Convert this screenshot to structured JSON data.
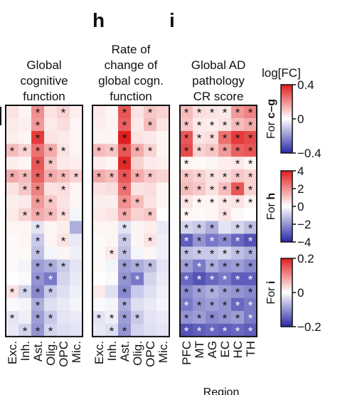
{
  "panel_labels": [
    "h",
    "i"
  ],
  "legend": {
    "title": "log[FC]",
    "bars": [
      {
        "label": "For c–g",
        "ticks": [
          "0.4",
          "0",
          "−0.4"
        ],
        "range": [
          -0.4,
          0.4
        ]
      },
      {
        "label": "For h",
        "ticks": [
          "4",
          "2",
          "0",
          "−2",
          "−4"
        ],
        "range": [
          -4,
          4
        ]
      },
      {
        "label": "For i",
        "ticks": [
          "0.2",
          "0",
          "−0.2"
        ],
        "range": [
          -0.2,
          0.2
        ]
      }
    ]
  },
  "chart_data": [
    {
      "type": "heatmap",
      "title": "Global cognitive function",
      "title_lines": [
        "Global",
        "cognitive",
        "function"
      ],
      "columns": [
        "Exc.",
        "Inh.",
        "Ast.",
        "Olig.",
        "OPC",
        "Mic."
      ],
      "rows": 18,
      "values": [
        [
          0.05,
          0.02,
          0.2,
          0.05,
          0.08,
          0.03
        ],
        [
          0.04,
          0.03,
          0.18,
          0.04,
          0.06,
          0.02
        ],
        [
          0.03,
          0.02,
          0.35,
          0.05,
          0.04,
          0.02
        ],
        [
          0.12,
          0.08,
          0.25,
          0.15,
          0.05,
          0.02
        ],
        [
          0.03,
          0.02,
          0.3,
          0.1,
          0.04,
          0.03
        ],
        [
          0.15,
          0.12,
          0.28,
          0.15,
          0.12,
          0.08
        ],
        [
          0.05,
          0.1,
          0.22,
          0.05,
          0.06,
          0.02
        ],
        [
          0.03,
          0.04,
          0.18,
          0.1,
          0.05,
          0.02
        ],
        [
          0.04,
          0.08,
          0.15,
          0.12,
          0.06,
          -0.02
        ],
        [
          0.02,
          0.02,
          -0.05,
          0.02,
          0.03,
          -0.15
        ],
        [
          0.01,
          0.02,
          -0.1,
          0.02,
          0.05,
          -0.04
        ],
        [
          0.01,
          0.01,
          -0.12,
          -0.02,
          0.02,
          -0.03
        ],
        [
          0.01,
          -0.02,
          -0.18,
          -0.15,
          -0.1,
          -0.05
        ],
        [
          0.0,
          -0.01,
          -0.2,
          -0.25,
          -0.08,
          -0.04
        ],
        [
          0.05,
          -0.08,
          -0.22,
          -0.1,
          -0.06,
          -0.03
        ],
        [
          -0.01,
          -0.02,
          -0.15,
          -0.06,
          -0.04,
          -0.02
        ],
        [
          -0.05,
          -0.03,
          -0.18,
          -0.1,
          -0.05,
          -0.04
        ],
        [
          -0.04,
          -0.08,
          -0.2,
          -0.08,
          -0.06,
          -0.05
        ]
      ],
      "stars": [
        [
          0,
          0,
          1,
          0,
          1,
          0
        ],
        [
          0,
          0,
          1,
          0,
          0,
          0
        ],
        [
          0,
          0,
          1,
          0,
          0,
          0
        ],
        [
          1,
          1,
          1,
          1,
          1,
          0
        ],
        [
          0,
          0,
          1,
          1,
          0,
          0
        ],
        [
          1,
          1,
          1,
          1,
          1,
          1
        ],
        [
          0,
          1,
          1,
          0,
          1,
          0
        ],
        [
          0,
          0,
          1,
          1,
          0,
          0
        ],
        [
          0,
          1,
          1,
          1,
          1,
          0
        ],
        [
          0,
          0,
          1,
          0,
          0,
          0
        ],
        [
          0,
          0,
          1,
          0,
          1,
          0
        ],
        [
          0,
          0,
          1,
          0,
          0,
          0
        ],
        [
          0,
          0,
          1,
          1,
          1,
          0
        ],
        [
          0,
          0,
          1,
          1,
          0,
          0
        ],
        [
          1,
          1,
          1,
          1,
          0,
          0
        ],
        [
          0,
          0,
          1,
          0,
          0,
          0
        ],
        [
          1,
          0,
          1,
          1,
          0,
          0
        ],
        [
          0,
          1,
          1,
          1,
          0,
          0
        ]
      ]
    },
    {
      "type": "heatmap",
      "title": "Rate of change of global cogn. function",
      "title_lines": [
        "Rate of",
        "change of",
        "global cogn.",
        "function"
      ],
      "columns": [
        "Exc.",
        "Inh.",
        "Ast.",
        "Olig.",
        "OPC",
        "Mic."
      ],
      "rows": 18,
      "values": [
        [
          0.04,
          0.02,
          0.3,
          0.05,
          0.1,
          0.08
        ],
        [
          0.03,
          0.02,
          0.28,
          0.04,
          0.12,
          0.05
        ],
        [
          0.02,
          0.02,
          0.4,
          0.05,
          0.04,
          0.02
        ],
        [
          0.12,
          0.1,
          0.3,
          0.15,
          0.08,
          0.02
        ],
        [
          0.03,
          0.02,
          0.38,
          0.08,
          0.04,
          0.03
        ],
        [
          0.15,
          0.12,
          0.3,
          0.15,
          0.1,
          0.08
        ],
        [
          0.05,
          0.06,
          0.25,
          0.05,
          0.06,
          0.02
        ],
        [
          0.03,
          0.03,
          0.2,
          0.12,
          0.05,
          0.02
        ],
        [
          0.04,
          0.05,
          0.15,
          0.08,
          0.1,
          0.0
        ],
        [
          0.02,
          0.02,
          -0.05,
          0.02,
          0.03,
          -0.04
        ],
        [
          0.01,
          0.02,
          -0.1,
          0.02,
          0.05,
          -0.03
        ],
        [
          0.01,
          0.04,
          -0.12,
          -0.02,
          0.02,
          -0.03
        ],
        [
          0.01,
          -0.02,
          -0.18,
          -0.15,
          -0.12,
          -0.05
        ],
        [
          0.0,
          -0.01,
          -0.2,
          -0.25,
          -0.08,
          -0.04
        ],
        [
          0.04,
          -0.06,
          -0.22,
          -0.1,
          -0.06,
          -0.03
        ],
        [
          -0.01,
          -0.02,
          -0.15,
          -0.06,
          -0.04,
          -0.02
        ],
        [
          -0.05,
          -0.03,
          -0.18,
          -0.1,
          -0.05,
          -0.04
        ],
        [
          -0.04,
          -0.06,
          -0.2,
          -0.08,
          -0.06,
          -0.05
        ]
      ],
      "stars": [
        [
          0,
          0,
          1,
          0,
          1,
          0
        ],
        [
          0,
          0,
          1,
          0,
          1,
          0
        ],
        [
          0,
          0,
          1,
          0,
          0,
          0
        ],
        [
          1,
          1,
          1,
          1,
          1,
          0
        ],
        [
          0,
          0,
          1,
          0,
          0,
          0
        ],
        [
          1,
          1,
          1,
          1,
          1,
          0
        ],
        [
          0,
          0,
          1,
          0,
          0,
          0
        ],
        [
          0,
          0,
          1,
          1,
          0,
          0
        ],
        [
          0,
          0,
          1,
          0,
          1,
          0
        ],
        [
          0,
          0,
          1,
          0,
          0,
          0
        ],
        [
          0,
          0,
          1,
          0,
          1,
          0
        ],
        [
          0,
          1,
          1,
          0,
          0,
          0
        ],
        [
          0,
          0,
          1,
          1,
          1,
          0
        ],
        [
          0,
          0,
          1,
          1,
          0,
          0
        ],
        [
          0,
          0,
          1,
          0,
          0,
          0
        ],
        [
          0,
          0,
          1,
          0,
          0,
          0
        ],
        [
          1,
          1,
          1,
          1,
          0,
          0
        ],
        [
          0,
          1,
          1,
          0,
          0,
          0
        ]
      ]
    },
    {
      "type": "heatmap",
      "title": "Global AD pathology CR score",
      "title_lines": [
        "Global AD",
        "pathology",
        "CR score"
      ],
      "columns": [
        "PFC",
        "MT",
        "AG",
        "EC",
        "HC",
        "TH"
      ],
      "xlabel": "Region",
      "rows": 18,
      "values": [
        [
          0.12,
          0.06,
          0.05,
          0.04,
          0.18,
          0.22
        ],
        [
          0.1,
          0.04,
          0.03,
          0.05,
          0.12,
          0.15
        ],
        [
          0.3,
          0.05,
          0.06,
          0.25,
          0.35,
          0.32
        ],
        [
          0.32,
          0.08,
          0.1,
          0.18,
          0.28,
          0.3
        ],
        [
          0.02,
          0.01,
          0.02,
          0.03,
          0.04,
          0.02
        ],
        [
          0.1,
          0.08,
          0.05,
          0.06,
          0.1,
          0.08
        ],
        [
          0.12,
          0.1,
          0.05,
          0.12,
          0.3,
          0.08
        ],
        [
          0.05,
          0.02,
          0.02,
          0.04,
          0.05,
          0.02
        ],
        [
          0.02,
          0.01,
          0.02,
          0.05,
          0.01,
          0.0
        ],
        [
          -0.08,
          -0.1,
          -0.15,
          -0.05,
          -0.08,
          -0.12
        ],
        [
          -0.3,
          -0.2,
          -0.25,
          -0.22,
          -0.28,
          -0.32
        ],
        [
          -0.12,
          -0.1,
          -0.1,
          -0.08,
          -0.12,
          -0.15
        ],
        [
          -0.18,
          -0.25,
          -0.15,
          -0.2,
          -0.18,
          -0.22
        ],
        [
          -0.28,
          -0.32,
          -0.28,
          -0.25,
          -0.3,
          -0.3
        ],
        [
          -0.22,
          -0.18,
          -0.15,
          -0.18,
          -0.2,
          -0.22
        ],
        [
          -0.25,
          -0.2,
          -0.18,
          -0.2,
          -0.28,
          -0.25
        ],
        [
          -0.2,
          -0.18,
          -0.22,
          -0.2,
          -0.18,
          -0.25
        ],
        [
          -0.32,
          -0.3,
          -0.28,
          -0.3,
          -0.28,
          -0.3
        ]
      ],
      "stars": [
        [
          1,
          1,
          1,
          1,
          1,
          1
        ],
        [
          1,
          1,
          1,
          1,
          1,
          1
        ],
        [
          1,
          1,
          1,
          1,
          1,
          1
        ],
        [
          1,
          1,
          1,
          1,
          1,
          1
        ],
        [
          1,
          0,
          0,
          0,
          1,
          1
        ],
        [
          1,
          1,
          1,
          1,
          1,
          1
        ],
        [
          1,
          1,
          1,
          1,
          1,
          1
        ],
        [
          1,
          1,
          1,
          1,
          1,
          1
        ],
        [
          1,
          0,
          0,
          1,
          0,
          0
        ],
        [
          1,
          1,
          1,
          0,
          1,
          1
        ],
        [
          1,
          1,
          1,
          1,
          1,
          1
        ],
        [
          1,
          1,
          1,
          1,
          1,
          1
        ],
        [
          1,
          1,
          1,
          1,
          1,
          1
        ],
        [
          1,
          1,
          1,
          1,
          1,
          1
        ],
        [
          1,
          1,
          1,
          1,
          1,
          1
        ],
        [
          1,
          1,
          1,
          1,
          1,
          1
        ],
        [
          1,
          1,
          1,
          1,
          1,
          1
        ],
        [
          1,
          1,
          1,
          1,
          1,
          1
        ]
      ]
    }
  ]
}
